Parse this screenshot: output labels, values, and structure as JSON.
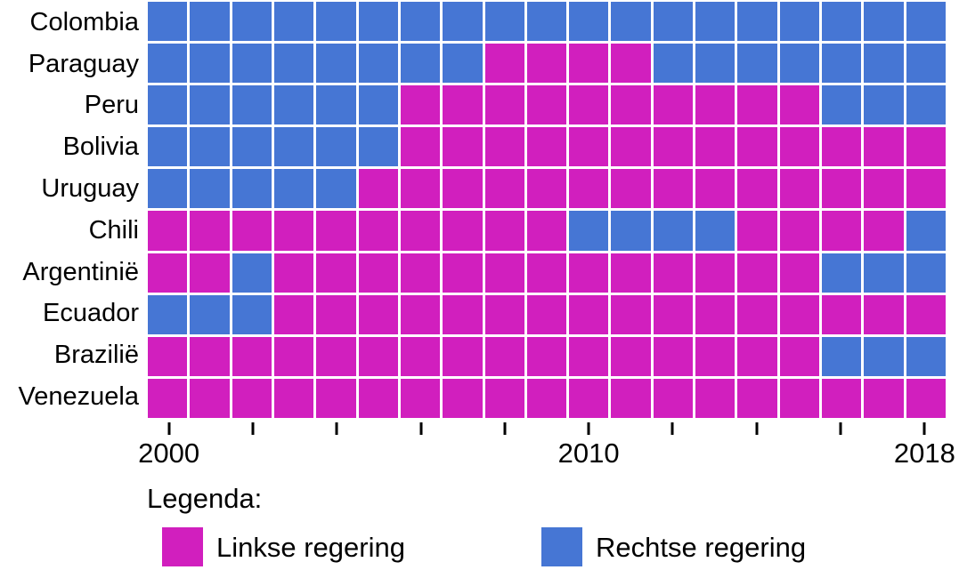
{
  "chart_data": {
    "type": "heatmap",
    "title": "",
    "xlabel": "",
    "ylabel": "",
    "years": [
      2000,
      2001,
      2002,
      2003,
      2004,
      2005,
      2006,
      2007,
      2008,
      2009,
      2010,
      2011,
      2012,
      2013,
      2014,
      2015,
      2016,
      2017,
      2018
    ],
    "x_tick_step": 2,
    "x_labeled_ticks": [
      2000,
      2010,
      2018
    ],
    "grid_gap_color": "#ffffff",
    "value_key": {
      "L": "Linkse regering",
      "R": "Rechtse regering"
    },
    "colors": {
      "L": "#D11FBE",
      "R": "#4676D4"
    },
    "rows": [
      {
        "country": "Colombia",
        "values": "RRRRRRRRRRRRRRRRRRR"
      },
      {
        "country": "Paraguay",
        "values": "RRRRRRRRLLLLRRRRRRR"
      },
      {
        "country": "Peru",
        "values": "RRRRRRLLLLLLLLLLRRR"
      },
      {
        "country": "Bolivia",
        "values": "RRRRRRLLLLLLLLLLLLL"
      },
      {
        "country": "Uruguay",
        "values": "RRRRRLLLLLLLLLLLLLL"
      },
      {
        "country": "Chili",
        "values": "LLLLLLLLLLRRRRLLLLR"
      },
      {
        "country": "Argentinië",
        "values": "LLRLLLLLLLLLLLLLRRR"
      },
      {
        "country": "Ecuador",
        "values": "RRRLLLLLLLLLLLLLLLL"
      },
      {
        "country": "Brazilië",
        "values": "LLLLLLLLLLLLLLLLRRR"
      },
      {
        "country": "Venezuela",
        "values": "LLLLLLLLLLLLLLLLLLL"
      }
    ]
  },
  "axis": {
    "tick_labels": [
      "2000",
      "2010",
      "2018"
    ]
  },
  "legend": {
    "title": "Legenda:",
    "items": [
      {
        "key": "L",
        "label": "Linkse regering",
        "color": "#D11FBE"
      },
      {
        "key": "R",
        "label": "Rechtse regering",
        "color": "#4676D4"
      }
    ]
  }
}
